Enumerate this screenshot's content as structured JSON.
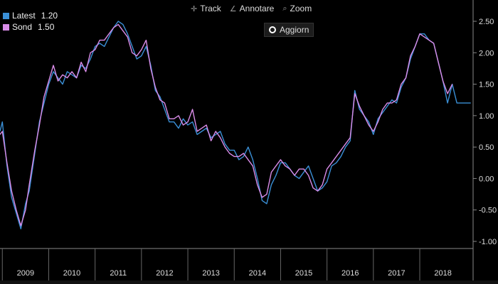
{
  "legend": [
    {
      "name": "Latest",
      "value": "1.20",
      "color": "#3a8fd6"
    },
    {
      "name": "Sond",
      "value": "1.50",
      "color": "#d98ce8"
    }
  ],
  "toolbar": {
    "track_label": "Track",
    "annotate_label": "Annotare",
    "zoom_label": "Zoom",
    "refresh_label": "Aggiorn"
  },
  "chart_data": {
    "type": "line",
    "title": "",
    "xlabel": "",
    "ylabel": "",
    "x_range": [
      2008.95,
      2019.15
    ],
    "ylim": [
      -1.0,
      2.5
    ],
    "y_ticks": [
      "2.50",
      "2.00",
      "1.50",
      "1.00",
      "0.50",
      "0.00",
      "-0.50",
      "-1.00"
    ],
    "x_tick_labels": [
      "2009",
      "2010",
      "2011",
      "2012",
      "2013",
      "2014",
      "2015",
      "2016",
      "2017",
      "2018"
    ],
    "grid": false,
    "legend_position": "top-left",
    "series": [
      {
        "name": "Latest",
        "color": "#3a8fd6",
        "x": [
          2008.95,
          2009.0,
          2009.1,
          2009.2,
          2009.3,
          2009.4,
          2009.5,
          2009.58,
          2009.7,
          2009.8,
          2009.9,
          2010.0,
          2010.1,
          2010.2,
          2010.3,
          2010.4,
          2010.5,
          2010.6,
          2010.7,
          2010.8,
          2010.9,
          2011.0,
          2011.1,
          2011.2,
          2011.3,
          2011.4,
          2011.5,
          2011.6,
          2011.7,
          2011.8,
          2011.9,
          2012.0,
          2012.1,
          2012.2,
          2012.3,
          2012.4,
          2012.5,
          2012.6,
          2012.7,
          2012.8,
          2012.9,
          2013.0,
          2013.1,
          2013.2,
          2013.3,
          2013.4,
          2013.5,
          2013.6,
          2013.7,
          2013.8,
          2013.9,
          2014.0,
          2014.1,
          2014.2,
          2014.3,
          2014.4,
          2014.5,
          2014.6,
          2014.7,
          2014.8,
          2014.9,
          2015.0,
          2015.1,
          2015.2,
          2015.3,
          2015.4,
          2015.5,
          2015.6,
          2015.7,
          2015.8,
          2015.9,
          2016.0,
          2016.1,
          2016.2,
          2016.3,
          2016.4,
          2016.5,
          2016.6,
          2016.7,
          2016.8,
          2016.9,
          2017.0,
          2017.1,
          2017.2,
          2017.3,
          2017.4,
          2017.5,
          2017.6,
          2017.7,
          2017.8,
          2017.9,
          2018.0,
          2018.1,
          2018.2,
          2018.3,
          2018.4,
          2018.5,
          2018.6,
          2018.7,
          2018.8,
          2018.9,
          2019.0,
          2019.1
        ],
        "values": [
          0.75,
          0.9,
          0.2,
          -0.3,
          -0.55,
          -0.8,
          -0.4,
          -0.2,
          0.4,
          0.9,
          1.2,
          1.5,
          1.7,
          1.6,
          1.5,
          1.7,
          1.65,
          1.6,
          1.8,
          1.75,
          1.9,
          2.1,
          2.15,
          2.1,
          2.25,
          2.4,
          2.5,
          2.45,
          2.3,
          2.1,
          1.9,
          1.95,
          2.1,
          1.8,
          1.4,
          1.3,
          1.1,
          0.9,
          0.9,
          0.8,
          0.95,
          0.85,
          0.9,
          0.7,
          0.75,
          0.8,
          0.65,
          0.7,
          0.75,
          0.55,
          0.45,
          0.45,
          0.3,
          0.35,
          0.5,
          0.3,
          0.0,
          -0.35,
          -0.4,
          -0.1,
          0.05,
          0.25,
          0.25,
          0.15,
          0.05,
          0.0,
          0.1,
          0.2,
          0.0,
          -0.2,
          -0.15,
          -0.05,
          0.2,
          0.25,
          0.35,
          0.5,
          0.6,
          1.4,
          1.1,
          1.0,
          0.9,
          0.7,
          0.95,
          1.05,
          1.15,
          1.25,
          1.2,
          1.45,
          1.6,
          1.9,
          2.1,
          2.3,
          2.3,
          2.2,
          2.15,
          1.85,
          1.55,
          1.2,
          1.5,
          1.2,
          1.2,
          1.2,
          1.2
        ]
      },
      {
        "name": "Sond",
        "color": "#d98ce8",
        "x": [
          2008.95,
          2009.0,
          2009.1,
          2009.2,
          2009.3,
          2009.4,
          2009.5,
          2009.58,
          2009.7,
          2009.8,
          2009.9,
          2010.0,
          2010.1,
          2010.2,
          2010.3,
          2010.4,
          2010.5,
          2010.6,
          2010.7,
          2010.8,
          2010.9,
          2011.0,
          2011.1,
          2011.2,
          2011.3,
          2011.4,
          2011.5,
          2011.6,
          2011.7,
          2011.8,
          2011.9,
          2012.0,
          2012.1,
          2012.2,
          2012.3,
          2012.4,
          2012.5,
          2012.6,
          2012.7,
          2012.8,
          2012.9,
          2013.0,
          2013.1,
          2013.2,
          2013.3,
          2013.4,
          2013.5,
          2013.6,
          2013.7,
          2013.8,
          2013.9,
          2014.0,
          2014.1,
          2014.2,
          2014.3,
          2014.4,
          2014.5,
          2014.6,
          2014.7,
          2014.8,
          2014.9,
          2015.0,
          2015.1,
          2015.2,
          2015.3,
          2015.4,
          2015.5,
          2015.6,
          2015.7,
          2015.8,
          2015.9,
          2016.0,
          2016.1,
          2016.2,
          2016.3,
          2016.4,
          2016.5,
          2016.6,
          2016.7,
          2016.8,
          2016.9,
          2017.0,
          2017.1,
          2017.2,
          2017.3,
          2017.4,
          2017.5,
          2017.6,
          2017.7,
          2017.8,
          2017.9,
          2018.0,
          2018.1,
          2018.2,
          2018.3,
          2018.4,
          2018.5,
          2018.6,
          2018.7
        ],
        "values": [
          0.7,
          0.75,
          0.25,
          -0.2,
          -0.5,
          -0.75,
          -0.5,
          -0.1,
          0.45,
          0.85,
          1.3,
          1.55,
          1.8,
          1.55,
          1.65,
          1.6,
          1.7,
          1.6,
          1.85,
          1.7,
          2.0,
          2.05,
          2.2,
          2.2,
          2.3,
          2.4,
          2.45,
          2.35,
          2.25,
          2.0,
          1.95,
          2.05,
          2.2,
          1.75,
          1.45,
          1.25,
          1.2,
          0.95,
          0.95,
          1.0,
          0.85,
          0.9,
          1.1,
          0.75,
          0.8,
          0.85,
          0.6,
          0.75,
          0.65,
          0.5,
          0.4,
          0.35,
          0.35,
          0.4,
          0.3,
          0.2,
          -0.1,
          -0.3,
          -0.25,
          0.1,
          0.2,
          0.3,
          0.2,
          0.15,
          0.05,
          0.15,
          0.15,
          0.05,
          -0.15,
          -0.2,
          -0.1,
          0.15,
          0.25,
          0.35,
          0.45,
          0.55,
          0.65,
          1.35,
          1.15,
          1.0,
          0.85,
          0.75,
          0.9,
          1.1,
          1.2,
          1.2,
          1.25,
          1.5,
          1.6,
          1.95,
          2.1,
          2.3,
          2.25,
          2.2,
          2.15,
          1.85,
          1.55,
          1.35,
          1.5
        ]
      }
    ]
  }
}
